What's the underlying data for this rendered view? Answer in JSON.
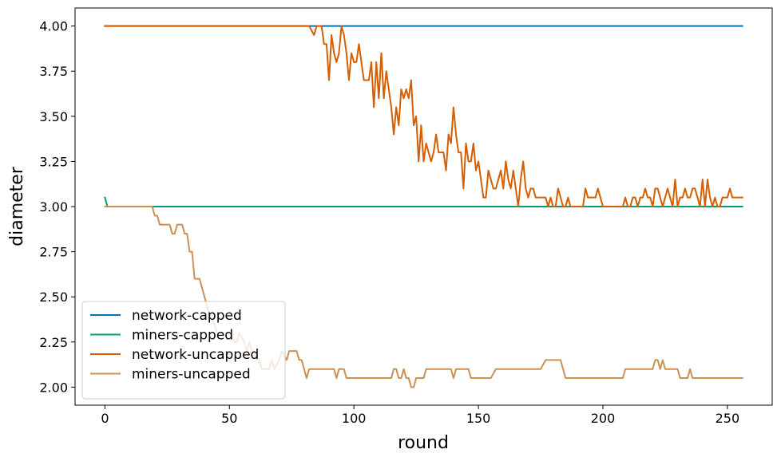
{
  "chart_data": {
    "type": "line",
    "xlabel": "round",
    "ylabel": "diameter",
    "xlim": [
      -12,
      268
    ],
    "ylim": [
      1.9,
      4.1
    ],
    "xticks": [
      0,
      50,
      100,
      150,
      200,
      250
    ],
    "yticks": [
      2.0,
      2.25,
      2.5,
      2.75,
      3.0,
      3.25,
      3.5,
      3.75,
      4.0
    ],
    "ytick_labels": [
      "2.00",
      "2.25",
      "2.50",
      "2.75",
      "3.00",
      "3.25",
      "3.50",
      "3.75",
      "4.00"
    ],
    "xtick_labels": [
      "0",
      "50",
      "100",
      "150",
      "200",
      "250"
    ],
    "grid": false,
    "legend_position": "lower-left",
    "series": [
      {
        "name": "network-capped",
        "color": "#0072b2",
        "points": [
          [
            0,
            4.0
          ],
          [
            256,
            4.0
          ]
        ]
      },
      {
        "name": "miners-capped",
        "color": "#009e73",
        "points": [
          [
            0,
            3.05
          ],
          [
            1,
            3.0
          ],
          [
            256,
            3.0
          ]
        ]
      },
      {
        "name": "network-uncapped",
        "color": "#d55e00",
        "points": [
          [
            0,
            4.0
          ],
          [
            82,
            4.0
          ],
          [
            84,
            3.95
          ],
          [
            85,
            4.0
          ],
          [
            87,
            4.0
          ],
          [
            88,
            3.9
          ],
          [
            89,
            3.9
          ],
          [
            90,
            3.7
          ],
          [
            91,
            3.95
          ],
          [
            92,
            3.85
          ],
          [
            93,
            3.8
          ],
          [
            94,
            3.85
          ],
          [
            95,
            4.0
          ],
          [
            96,
            3.95
          ],
          [
            97,
            3.85
          ],
          [
            98,
            3.7
          ],
          [
            99,
            3.85
          ],
          [
            100,
            3.8
          ],
          [
            101,
            3.8
          ],
          [
            102,
            3.9
          ],
          [
            103,
            3.8
          ],
          [
            104,
            3.7
          ],
          [
            105,
            3.7
          ],
          [
            106,
            3.7
          ],
          [
            107,
            3.8
          ],
          [
            108,
            3.55
          ],
          [
            109,
            3.8
          ],
          [
            110,
            3.6
          ],
          [
            111,
            3.85
          ],
          [
            112,
            3.6
          ],
          [
            113,
            3.75
          ],
          [
            114,
            3.65
          ],
          [
            115,
            3.55
          ],
          [
            116,
            3.4
          ],
          [
            117,
            3.55
          ],
          [
            118,
            3.45
          ],
          [
            119,
            3.65
          ],
          [
            120,
            3.6
          ],
          [
            121,
            3.65
          ],
          [
            122,
            3.6
          ],
          [
            123,
            3.7
          ],
          [
            124,
            3.45
          ],
          [
            125,
            3.5
          ],
          [
            126,
            3.25
          ],
          [
            127,
            3.45
          ],
          [
            128,
            3.25
          ],
          [
            129,
            3.35
          ],
          [
            130,
            3.3
          ],
          [
            131,
            3.25
          ],
          [
            132,
            3.3
          ],
          [
            133,
            3.4
          ],
          [
            134,
            3.3
          ],
          [
            135,
            3.3
          ],
          [
            136,
            3.3
          ],
          [
            137,
            3.2
          ],
          [
            138,
            3.4
          ],
          [
            139,
            3.35
          ],
          [
            140,
            3.55
          ],
          [
            141,
            3.4
          ],
          [
            142,
            3.3
          ],
          [
            143,
            3.3
          ],
          [
            144,
            3.1
          ],
          [
            145,
            3.35
          ],
          [
            146,
            3.25
          ],
          [
            147,
            3.25
          ],
          [
            148,
            3.35
          ],
          [
            149,
            3.2
          ],
          [
            150,
            3.25
          ],
          [
            151,
            3.15
          ],
          [
            152,
            3.05
          ],
          [
            153,
            3.05
          ],
          [
            154,
            3.2
          ],
          [
            155,
            3.15
          ],
          [
            156,
            3.1
          ],
          [
            157,
            3.1
          ],
          [
            158,
            3.15
          ],
          [
            159,
            3.2
          ],
          [
            160,
            3.1
          ],
          [
            161,
            3.25
          ],
          [
            162,
            3.15
          ],
          [
            163,
            3.1
          ],
          [
            164,
            3.2
          ],
          [
            165,
            3.1
          ],
          [
            166,
            3.0
          ],
          [
            167,
            3.15
          ],
          [
            168,
            3.25
          ],
          [
            169,
            3.1
          ],
          [
            170,
            3.05
          ],
          [
            171,
            3.1
          ],
          [
            172,
            3.1
          ],
          [
            173,
            3.05
          ],
          [
            177,
            3.05
          ],
          [
            178,
            3.0
          ],
          [
            179,
            3.05
          ],
          [
            180,
            3.0
          ],
          [
            181,
            3.0
          ],
          [
            182,
            3.1
          ],
          [
            183,
            3.05
          ],
          [
            184,
            3.0
          ],
          [
            185,
            3.0
          ],
          [
            186,
            3.05
          ],
          [
            187,
            3.0
          ],
          [
            192,
            3.0
          ],
          [
            193,
            3.1
          ],
          [
            194,
            3.05
          ],
          [
            197,
            3.05
          ],
          [
            198,
            3.1
          ],
          [
            199,
            3.05
          ],
          [
            200,
            3.0
          ],
          [
            208,
            3.0
          ],
          [
            209,
            3.05
          ],
          [
            210,
            3.0
          ],
          [
            211,
            3.0
          ],
          [
            212,
            3.05
          ],
          [
            213,
            3.05
          ],
          [
            214,
            3.0
          ],
          [
            215,
            3.05
          ],
          [
            216,
            3.05
          ],
          [
            217,
            3.1
          ],
          [
            218,
            3.05
          ],
          [
            219,
            3.05
          ],
          [
            220,
            3.0
          ],
          [
            221,
            3.1
          ],
          [
            222,
            3.1
          ],
          [
            223,
            3.05
          ],
          [
            224,
            3.0
          ],
          [
            225,
            3.05
          ],
          [
            226,
            3.1
          ],
          [
            227,
            3.05
          ],
          [
            228,
            3.0
          ],
          [
            229,
            3.15
          ],
          [
            230,
            3.0
          ],
          [
            231,
            3.05
          ],
          [
            232,
            3.05
          ],
          [
            233,
            3.1
          ],
          [
            234,
            3.05
          ],
          [
            235,
            3.05
          ],
          [
            236,
            3.1
          ],
          [
            237,
            3.1
          ],
          [
            238,
            3.05
          ],
          [
            239,
            3.0
          ],
          [
            240,
            3.15
          ],
          [
            241,
            3.0
          ],
          [
            242,
            3.15
          ],
          [
            243,
            3.05
          ],
          [
            244,
            3.0
          ],
          [
            245,
            3.05
          ],
          [
            246,
            3.0
          ],
          [
            247,
            3.0
          ],
          [
            248,
            3.05
          ],
          [
            249,
            3.05
          ],
          [
            250,
            3.05
          ],
          [
            251,
            3.1
          ],
          [
            252,
            3.05
          ],
          [
            253,
            3.05
          ],
          [
            256,
            3.05
          ]
        ]
      },
      {
        "name": "miners-uncapped",
        "color": "#cc9053",
        "points": [
          [
            0,
            3.0
          ],
          [
            19,
            3.0
          ],
          [
            20,
            2.95
          ],
          [
            21,
            2.95
          ],
          [
            22,
            2.9
          ],
          [
            26,
            2.9
          ],
          [
            27,
            2.85
          ],
          [
            28,
            2.85
          ],
          [
            29,
            2.9
          ],
          [
            31,
            2.9
          ],
          [
            32,
            2.85
          ],
          [
            33,
            2.85
          ],
          [
            34,
            2.75
          ],
          [
            35,
            2.75
          ],
          [
            36,
            2.6
          ],
          [
            38,
            2.6
          ],
          [
            39,
            2.55
          ],
          [
            40,
            2.5
          ],
          [
            41,
            2.45
          ],
          [
            42,
            2.4
          ],
          [
            44,
            2.35
          ],
          [
            45,
            2.3
          ],
          [
            50,
            2.3
          ],
          [
            52,
            2.25
          ],
          [
            53,
            2.25
          ],
          [
            54,
            2.3
          ],
          [
            56,
            2.25
          ],
          [
            57,
            2.2
          ],
          [
            58,
            2.25
          ],
          [
            59,
            2.2
          ],
          [
            60,
            2.2
          ],
          [
            61,
            2.15
          ],
          [
            62,
            2.15
          ],
          [
            63,
            2.1
          ],
          [
            66,
            2.1
          ],
          [
            67,
            2.15
          ],
          [
            68,
            2.1
          ],
          [
            70,
            2.15
          ],
          [
            71,
            2.2
          ],
          [
            73,
            2.15
          ],
          [
            74,
            2.2
          ],
          [
            77,
            2.2
          ],
          [
            78,
            2.15
          ],
          [
            79,
            2.15
          ],
          [
            80,
            2.1
          ],
          [
            81,
            2.05
          ],
          [
            82,
            2.1
          ],
          [
            92,
            2.1
          ],
          [
            93,
            2.05
          ],
          [
            94,
            2.1
          ],
          [
            96,
            2.1
          ],
          [
            97,
            2.05
          ],
          [
            115,
            2.05
          ],
          [
            116,
            2.1
          ],
          [
            117,
            2.1
          ],
          [
            118,
            2.05
          ],
          [
            119,
            2.05
          ],
          [
            120,
            2.1
          ],
          [
            121,
            2.05
          ],
          [
            122,
            2.05
          ],
          [
            123,
            2.0
          ],
          [
            124,
            2.0
          ],
          [
            125,
            2.05
          ],
          [
            126,
            2.05
          ],
          [
            128,
            2.05
          ],
          [
            129,
            2.1
          ],
          [
            139,
            2.1
          ],
          [
            140,
            2.05
          ],
          [
            141,
            2.1
          ],
          [
            146,
            2.1
          ],
          [
            147,
            2.05
          ],
          [
            155,
            2.05
          ],
          [
            157,
            2.1
          ],
          [
            175,
            2.1
          ],
          [
            177,
            2.15
          ],
          [
            183,
            2.15
          ],
          [
            185,
            2.05
          ],
          [
            208,
            2.05
          ],
          [
            209,
            2.1
          ],
          [
            220,
            2.1
          ],
          [
            221,
            2.15
          ],
          [
            222,
            2.15
          ],
          [
            223,
            2.1
          ],
          [
            224,
            2.15
          ],
          [
            225,
            2.1
          ],
          [
            230,
            2.1
          ],
          [
            231,
            2.05
          ],
          [
            234,
            2.05
          ],
          [
            235,
            2.1
          ],
          [
            236,
            2.05
          ],
          [
            256,
            2.05
          ]
        ]
      }
    ]
  }
}
